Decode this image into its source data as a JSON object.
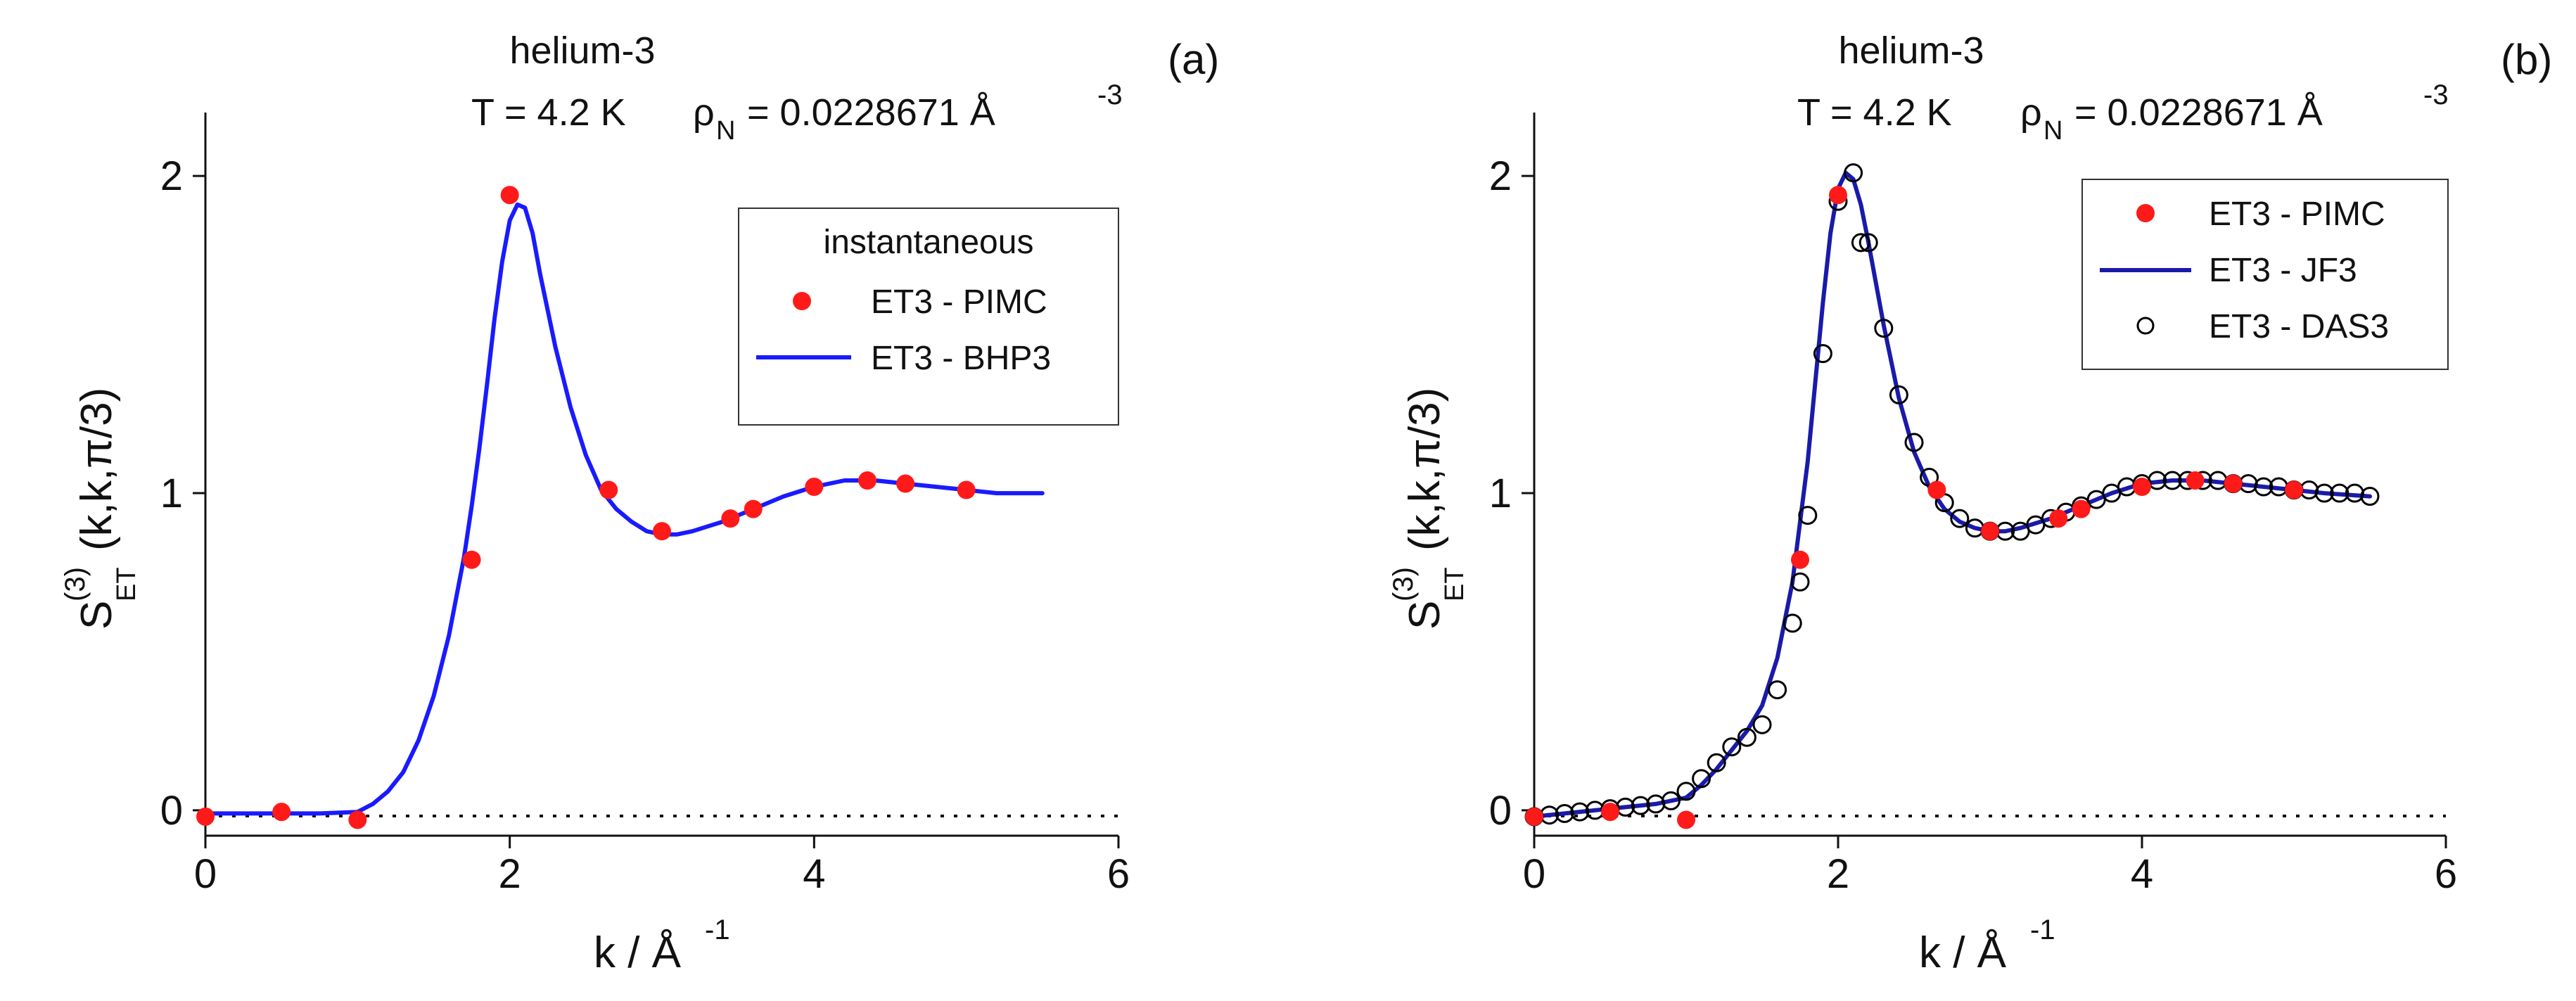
{
  "chart_data": [
    {
      "panel": "(a)",
      "type": "line",
      "title_line1": "helium-3",
      "title_line2_main": "T = 4.2 K",
      "title_rho": "ρ",
      "title_rho_sub": "N",
      "title_rho_value": "= 0.0228671 Å",
      "title_rho_exp": "-3",
      "ylabel_main": "S",
      "ylabel_sup": "(3)",
      "ylabel_sub": "ET",
      "ylabel_args": "(k,k,π/3)",
      "xlabel_main": "k / Å",
      "xlabel_sup": "-1",
      "xlim": [
        0,
        6
      ],
      "ylim": [
        -0.08,
        2.2
      ],
      "xticks": [
        0,
        2,
        4,
        6
      ],
      "yticks": [
        0,
        1,
        2
      ],
      "xtick_labels": [
        "0",
        "2",
        "4",
        "6"
      ],
      "ytick_labels": [
        "0",
        "1",
        "2"
      ],
      "legend_title": "instantaneous",
      "series": [
        {
          "name": "ET3 - PIMC",
          "kind": "points",
          "color": "#ff1a1a",
          "x": [
            0.0,
            0.5,
            1.0,
            1.75,
            2.0,
            2.65,
            3.0,
            3.45,
            3.6,
            4.0,
            4.35,
            4.6,
            5.0
          ],
          "y": [
            -0.02,
            -0.005,
            -0.03,
            0.79,
            1.94,
            1.01,
            0.88,
            0.92,
            0.95,
            1.02,
            1.04,
            1.03,
            1.01
          ]
        },
        {
          "name": "ET3 - BHP3",
          "kind": "line",
          "color": "#1a1aff",
          "x": [
            0.0,
            0.25,
            0.5,
            0.75,
            1.0,
            1.1,
            1.2,
            1.3,
            1.4,
            1.5,
            1.6,
            1.7,
            1.75,
            1.8,
            1.85,
            1.9,
            1.95,
            2.0,
            2.05,
            2.1,
            2.15,
            2.2,
            2.3,
            2.4,
            2.5,
            2.6,
            2.7,
            2.8,
            2.9,
            3.0,
            3.1,
            3.2,
            3.4,
            3.6,
            3.8,
            4.0,
            4.2,
            4.4,
            4.6,
            4.8,
            5.0,
            5.2,
            5.5
          ],
          "y": [
            -0.01,
            -0.01,
            -0.01,
            -0.01,
            -0.005,
            0.02,
            0.06,
            0.12,
            0.22,
            0.36,
            0.55,
            0.8,
            0.96,
            1.14,
            1.34,
            1.55,
            1.73,
            1.86,
            1.91,
            1.9,
            1.82,
            1.69,
            1.46,
            1.27,
            1.12,
            1.01,
            0.95,
            0.91,
            0.88,
            0.87,
            0.87,
            0.88,
            0.91,
            0.95,
            0.99,
            1.02,
            1.04,
            1.04,
            1.03,
            1.02,
            1.01,
            1.0,
            1.0
          ]
        }
      ]
    },
    {
      "panel": "(b)",
      "type": "line",
      "title_line1": "helium-3",
      "title_line2_main": "T = 4.2 K",
      "title_rho": "ρ",
      "title_rho_sub": "N",
      "title_rho_value": "= 0.0228671 Å",
      "title_rho_exp": "-3",
      "ylabel_main": "S",
      "ylabel_sup": "(3)",
      "ylabel_sub": "ET",
      "ylabel_args": "(k,k,π/3)",
      "xlabel_main": "k / Å",
      "xlabel_sup": "-1",
      "xlim": [
        0,
        6
      ],
      "ylim": [
        -0.08,
        2.2
      ],
      "xticks": [
        0,
        2,
        4,
        6
      ],
      "yticks": [
        0,
        1,
        2
      ],
      "xtick_labels": [
        "0",
        "2",
        "4",
        "6"
      ],
      "ytick_labels": [
        "0",
        "1",
        "2"
      ],
      "legend_title": "",
      "series": [
        {
          "name": "ET3 - PIMC",
          "kind": "points",
          "color": "#ff1a1a",
          "x": [
            0.0,
            0.5,
            1.0,
            1.75,
            2.0,
            2.65,
            3.0,
            3.45,
            3.6,
            4.0,
            4.35,
            4.6,
            5.0
          ],
          "y": [
            -0.02,
            -0.005,
            -0.03,
            0.79,
            1.94,
            1.01,
            0.88,
            0.92,
            0.95,
            1.02,
            1.04,
            1.03,
            1.01
          ]
        },
        {
          "name": "ET3 - JF3",
          "kind": "line",
          "color": "#1a1aaa",
          "x": [
            0.0,
            0.2,
            0.4,
            0.6,
            0.8,
            1.0,
            1.1,
            1.2,
            1.3,
            1.4,
            1.5,
            1.6,
            1.7,
            1.8,
            1.85,
            1.9,
            1.95,
            2.0,
            2.05,
            2.1,
            2.15,
            2.2,
            2.3,
            2.4,
            2.5,
            2.6,
            2.7,
            2.8,
            2.9,
            3.0,
            3.1,
            3.2,
            3.4,
            3.6,
            3.8,
            4.0,
            4.2,
            4.4,
            4.6,
            4.8,
            5.0,
            5.2,
            5.5
          ],
          "y": [
            -0.02,
            -0.01,
            0.0,
            0.01,
            0.02,
            0.04,
            0.08,
            0.13,
            0.19,
            0.25,
            0.33,
            0.48,
            0.72,
            1.1,
            1.35,
            1.6,
            1.82,
            1.96,
            2.01,
            1.99,
            1.91,
            1.79,
            1.53,
            1.3,
            1.13,
            1.02,
            0.95,
            0.91,
            0.89,
            0.88,
            0.88,
            0.89,
            0.92,
            0.96,
            1.0,
            1.03,
            1.04,
            1.04,
            1.03,
            1.02,
            1.01,
            1.0,
            0.99
          ]
        },
        {
          "name": "ET3 - DAS3",
          "kind": "open-circles",
          "color": "#000000",
          "x": [
            0.0,
            0.1,
            0.2,
            0.3,
            0.4,
            0.5,
            0.6,
            0.7,
            0.8,
            0.9,
            1.0,
            1.1,
            1.2,
            1.3,
            1.4,
            1.5,
            1.6,
            1.7,
            1.75,
            1.8,
            1.9,
            2.0,
            2.1,
            2.15,
            2.2,
            2.3,
            2.4,
            2.5,
            2.6,
            2.7,
            2.8,
            2.9,
            3.0,
            3.1,
            3.2,
            3.3,
            3.4,
            3.5,
            3.6,
            3.7,
            3.8,
            3.9,
            4.0,
            4.1,
            4.2,
            4.3,
            4.4,
            4.5,
            4.6,
            4.7,
            4.8,
            4.9,
            5.0,
            5.1,
            5.2,
            5.3,
            5.4,
            5.5
          ],
          "y": [
            -0.02,
            -0.015,
            -0.01,
            -0.005,
            0.0,
            0.005,
            0.01,
            0.015,
            0.02,
            0.03,
            0.06,
            0.1,
            0.15,
            0.2,
            0.23,
            0.27,
            0.38,
            0.59,
            0.72,
            0.93,
            1.44,
            1.92,
            2.01,
            1.79,
            1.79,
            1.52,
            1.31,
            1.16,
            1.05,
            0.97,
            0.92,
            0.89,
            0.88,
            0.88,
            0.88,
            0.9,
            0.92,
            0.94,
            0.96,
            0.98,
            1.0,
            1.02,
            1.03,
            1.04,
            1.04,
            1.04,
            1.04,
            1.04,
            1.03,
            1.03,
            1.02,
            1.02,
            1.01,
            1.01,
            1.0,
            1.0,
            1.0,
            0.99
          ]
        }
      ]
    }
  ]
}
